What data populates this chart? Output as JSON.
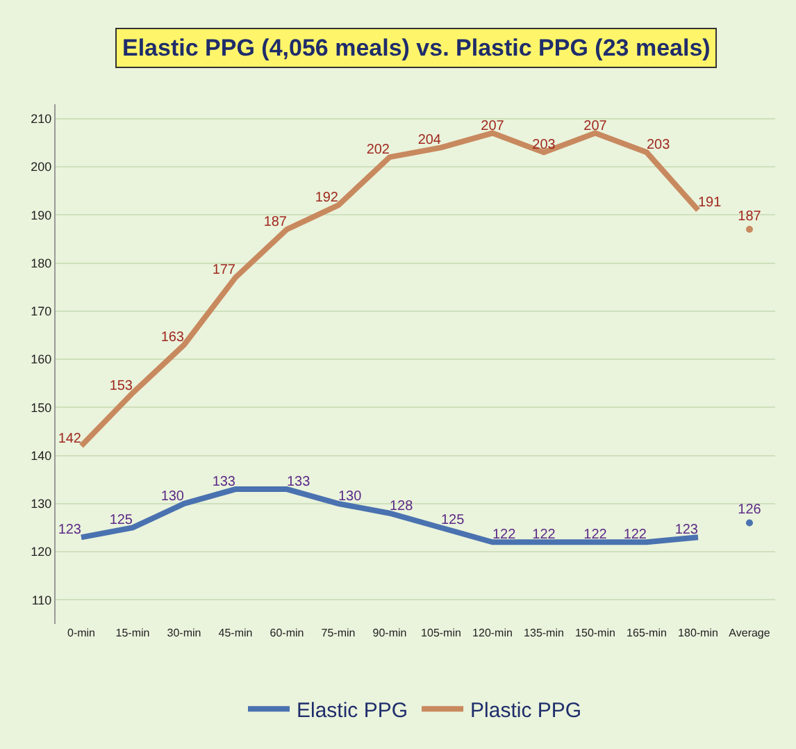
{
  "chart_data": {
    "type": "line",
    "title": "Elastic PPG (4,056 meals) vs. Plastic PPG (23 meals)",
    "categories": [
      "0-min",
      "15-min",
      "30-min",
      "45-min",
      "60-min",
      "75-min",
      "90-min",
      "105-min",
      "120-min",
      "135-min",
      "150-min",
      "165-min",
      "180-min",
      "Average"
    ],
    "series": [
      {
        "name": "Elastic PPG",
        "color": "#4a72b0",
        "values": [
          123,
          125,
          130,
          133,
          133,
          130,
          128,
          125,
          122,
          122,
          122,
          122,
          123,
          null
        ]
      },
      {
        "name": "Plastic PPG",
        "color": "#c8895e",
        "values": [
          142,
          153,
          163,
          177,
          187,
          192,
          202,
          204,
          207,
          203,
          207,
          203,
          191,
          null
        ]
      },
      {
        "type": "scatter",
        "marker": "circle",
        "color": "#4a72b0",
        "values": [
          null,
          null,
          null,
          null,
          null,
          null,
          null,
          null,
          null,
          null,
          null,
          null,
          null,
          126
        ]
      },
      {
        "type": "scatter",
        "marker": "circle",
        "color": "#c8895e",
        "values": [
          null,
          null,
          null,
          null,
          null,
          null,
          null,
          null,
          null,
          null,
          null,
          null,
          null,
          187
        ]
      }
    ],
    "ylim": [
      105,
      213
    ],
    "yticks": [
      110,
      120,
      130,
      140,
      150,
      160,
      170,
      180,
      190,
      200,
      210
    ],
    "grid": "y",
    "legend": "bottom",
    "data_labels": true,
    "marker": "none",
    "line_style": "solid"
  }
}
